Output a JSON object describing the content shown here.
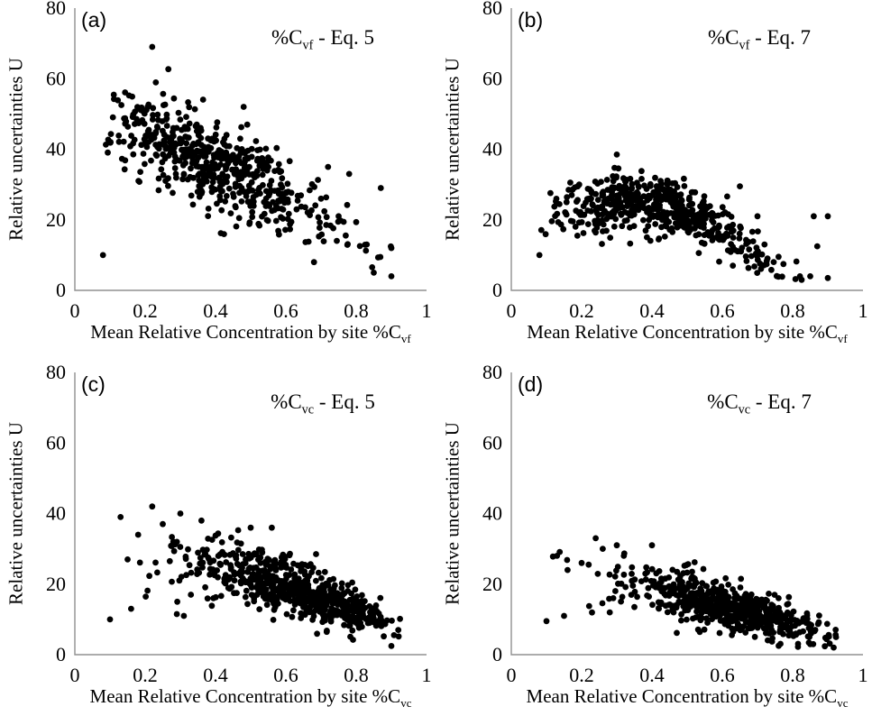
{
  "figure": {
    "background": "#ffffff",
    "text_color": "#000000",
    "description": "2x2 grid of scatter plots of relative uncertainty U versus mean relative concentration by site"
  },
  "chart_data": {
    "type": "scatter",
    "layout": "2x2 panel grid",
    "grid": false,
    "legend": "none",
    "shared": {
      "ylabel": "Relative uncertainties U",
      "xlabel_prefix": "Mean Relative Concentration by site %C",
      "xlim": [
        0,
        1
      ],
      "ylim": [
        0,
        80
      ],
      "x_tick_values": [
        0,
        0.2,
        0.4,
        0.6,
        0.8,
        1
      ],
      "x_tick_labels": [
        "0",
        "0.2",
        "0.4",
        "0.6",
        "0.8",
        "1"
      ],
      "y_tick_values": [
        0,
        20,
        40,
        60,
        80
      ],
      "y_tick_labels": [
        "0",
        "20",
        "40",
        "60",
        "80"
      ],
      "point_color": "#000000",
      "point_radius": 3.4,
      "axis_color": "#909090"
    },
    "panels": [
      {
        "letter": "(a)",
        "title_prefix": "%C",
        "title_sub": "vf",
        "title_suffix": " - Eq. 5",
        "xlabel_sub": "vf",
        "trend_note": "negative correlation; U ~45 near x=0.2 falling to ~10 near x=0.85",
        "x_range_observed": [
          0.08,
          0.92
        ],
        "y_range_observed": [
          4,
          69
        ],
        "cloud": {
          "seed": 7,
          "n": 540,
          "x_mean": 0.4,
          "x_sd": 0.155,
          "x_min": 0.08,
          "x_max": 0.92,
          "trend_c": [
            48,
            -15,
            -35
          ],
          "sd0": 7.0,
          "sd1": -2.0,
          "y_min": 4,
          "y_max": 69
        },
        "outliers": [
          [
            0.22,
            69
          ],
          [
            0.9,
            4
          ],
          [
            0.85,
            5
          ],
          [
            0.87,
            29
          ],
          [
            0.08,
            10
          ],
          [
            0.48,
            52
          ],
          [
            0.78,
            33
          ],
          [
            0.83,
            13
          ],
          [
            0.9,
            12
          ],
          [
            0.72,
            35
          ],
          [
            0.75,
            21
          ],
          [
            0.7,
            26
          ],
          [
            0.68,
            8
          ]
        ]
      },
      {
        "letter": "(b)",
        "title_prefix": "%C",
        "title_sub": "vf",
        "title_suffix": " - Eq. 7",
        "xlabel_sub": "vf",
        "trend_note": "gentle hump; U peaks ~25 near x=0.3 then declines to ~5 near x=0.9",
        "x_range_observed": [
          0.08,
          0.92
        ],
        "y_range_observed": [
          3,
          39
        ],
        "cloud": {
          "seed": 13,
          "n": 520,
          "x_mean": 0.41,
          "x_sd": 0.155,
          "x_min": 0.08,
          "x_max": 0.92,
          "trend_c": [
            14,
            70,
            -110
          ],
          "sd0": 4.6,
          "sd1": -1.0,
          "y_min": 3,
          "y_max": 39
        },
        "outliers": [
          [
            0.3,
            38.5
          ],
          [
            0.9,
            3.5
          ],
          [
            0.85,
            4
          ],
          [
            0.87,
            12.5
          ],
          [
            0.9,
            21
          ],
          [
            0.86,
            21
          ],
          [
            0.76,
            9.5
          ],
          [
            0.72,
            13
          ],
          [
            0.7,
            21
          ],
          [
            0.65,
            29.5
          ],
          [
            0.08,
            10
          ],
          [
            0.63,
            7
          ]
        ]
      },
      {
        "letter": "(c)",
        "title_prefix": "%C",
        "title_sub": "vc",
        "title_suffix": " - Eq. 5",
        "xlabel_sub": "vc",
        "trend_note": "negative correlation funnel; U ~27 near x=0.4 narrowing to ~5 near x=0.9; sparse scatter for x<0.35",
        "x_range_observed": [
          0.1,
          0.93
        ],
        "y_range_observed": [
          1,
          42
        ],
        "cloud": {
          "seed": 23,
          "n": 600,
          "x_mean": 0.63,
          "x_sd": 0.155,
          "x_min": 0.1,
          "x_max": 0.93,
          "trend_c": [
            30,
            -5,
            -22
          ],
          "sd0": 5.8,
          "sd1": -3.2,
          "y_min": 1,
          "y_max": 42
        },
        "outliers": [
          [
            0.1,
            10
          ],
          [
            0.13,
            39
          ],
          [
            0.15,
            27
          ],
          [
            0.16,
            13
          ],
          [
            0.18,
            34
          ],
          [
            0.22,
            42
          ],
          [
            0.25,
            37
          ],
          [
            0.27,
            26.5
          ],
          [
            0.28,
            32
          ],
          [
            0.29,
            11.5
          ],
          [
            0.3,
            40
          ],
          [
            0.31,
            11
          ],
          [
            0.33,
            17
          ],
          [
            0.36,
            38
          ],
          [
            0.5,
            36
          ],
          [
            0.56,
            36
          ]
        ]
      },
      {
        "letter": "(d)",
        "title_prefix": "%C",
        "title_sub": "vc",
        "title_suffix": " - Eq. 7",
        "xlabel_sub": "vc",
        "trend_note": "negative correlation funnel; U ~19 near x=0.4 narrowing to ~2 near x=0.9; sparse scatter for x<0.35",
        "x_range_observed": [
          0.1,
          0.93
        ],
        "y_range_observed": [
          1,
          33
        ],
        "cloud": {
          "seed": 31,
          "n": 600,
          "x_mean": 0.63,
          "x_sd": 0.155,
          "x_min": 0.1,
          "x_max": 0.93,
          "trend_c": [
            26,
            -14,
            -10
          ],
          "sd0": 5.0,
          "sd1": -2.8,
          "y_min": 1,
          "y_max": 33
        },
        "outliers": [
          [
            0.1,
            9.5
          ],
          [
            0.13,
            28
          ],
          [
            0.15,
            11
          ],
          [
            0.16,
            24
          ],
          [
            0.2,
            26
          ],
          [
            0.22,
            25.5
          ],
          [
            0.24,
            33
          ],
          [
            0.26,
            30
          ],
          [
            0.28,
            12
          ],
          [
            0.29,
            16
          ],
          [
            0.3,
            31
          ],
          [
            0.32,
            28
          ],
          [
            0.35,
            13.5
          ],
          [
            0.4,
            31
          ],
          [
            0.76,
            16
          ],
          [
            0.72,
            14
          ]
        ]
      }
    ]
  }
}
